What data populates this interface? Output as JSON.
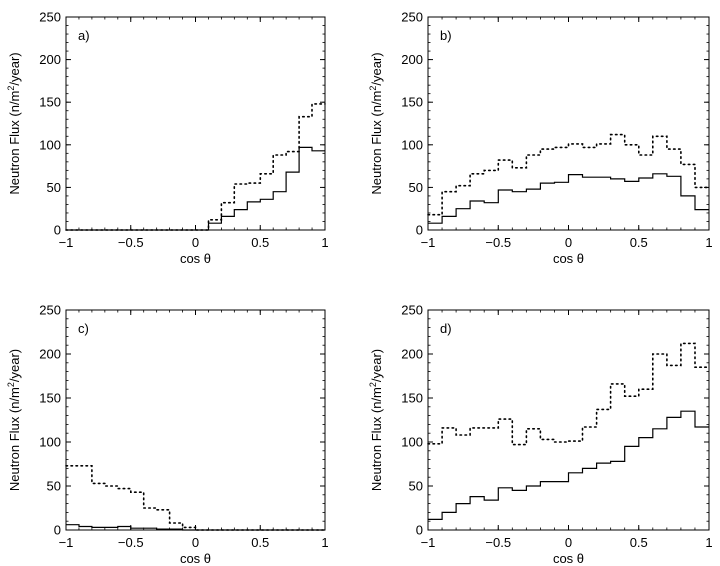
{
  "chart_data": [
    {
      "type": "step",
      "panel_label": "a)",
      "xlabel": "cos θ",
      "ylabel_parts": [
        "Neutron Flux (n/m",
        "2",
        "/year)"
      ],
      "xlim": [
        -1,
        1
      ],
      "ylim": [
        0,
        250
      ],
      "xticks": [
        -1,
        -0.5,
        0,
        0.5,
        1
      ],
      "yticks": [
        0,
        50,
        100,
        150,
        200,
        250
      ],
      "xtick_labels": [
        "−1",
        "−0.5",
        "0",
        "0.5",
        "1"
      ],
      "ytick_labels": [
        "0",
        "50",
        "100",
        "150",
        "200",
        "250"
      ],
      "bin_edges": [
        -1,
        -0.9,
        -0.8,
        -0.7,
        -0.6,
        -0.5,
        -0.4,
        -0.3,
        -0.2,
        -0.1,
        0,
        0.1,
        0.2,
        0.3,
        0.4,
        0.5,
        0.6,
        0.7,
        0.8,
        0.9,
        1
      ],
      "series": [
        {
          "name": "solid",
          "style": "solid",
          "values": [
            0,
            0,
            0,
            0,
            0,
            0,
            0,
            0,
            0,
            0,
            0,
            8,
            16,
            24,
            33,
            36,
            45,
            68,
            97,
            93
          ]
        },
        {
          "name": "dotted",
          "style": "dotted",
          "values": [
            0,
            0,
            0,
            0,
            0,
            0,
            0,
            0,
            0,
            0,
            0,
            12,
            32,
            54,
            55,
            66,
            88,
            92,
            133,
            148
          ]
        }
      ]
    },
    {
      "type": "step",
      "panel_label": "b)",
      "xlabel": "cos θ",
      "ylabel_parts": [
        "Neutron Flux (n/m",
        "2",
        "/year)"
      ],
      "xlim": [
        -1,
        1
      ],
      "ylim": [
        0,
        250
      ],
      "xticks": [
        -1,
        -0.5,
        0,
        0.5,
        1
      ],
      "yticks": [
        0,
        50,
        100,
        150,
        200,
        250
      ],
      "xtick_labels": [
        "−1",
        "−0.5",
        "0",
        "0.5",
        "1"
      ],
      "ytick_labels": [
        "0",
        "50",
        "100",
        "150",
        "200",
        "250"
      ],
      "bin_edges": [
        -1,
        -0.9,
        -0.8,
        -0.7,
        -0.6,
        -0.5,
        -0.4,
        -0.3,
        -0.2,
        -0.1,
        0,
        0.1,
        0.2,
        0.3,
        0.4,
        0.5,
        0.6,
        0.7,
        0.8,
        0.9,
        1
      ],
      "series": [
        {
          "name": "solid",
          "style": "solid",
          "values": [
            8,
            16,
            25,
            34,
            32,
            47,
            45,
            48,
            55,
            56,
            65,
            62,
            62,
            60,
            57,
            61,
            66,
            63,
            40,
            24
          ]
        },
        {
          "name": "dotted",
          "style": "dotted",
          "values": [
            18,
            45,
            52,
            66,
            70,
            82,
            73,
            88,
            95,
            97,
            101,
            97,
            101,
            112,
            100,
            88,
            110,
            95,
            77,
            50
          ]
        }
      ]
    },
    {
      "type": "step",
      "panel_label": "c)",
      "xlabel": "cos θ",
      "ylabel_parts": [
        "Neutron Flux (n/m",
        "2",
        "/year)"
      ],
      "xlim": [
        -1,
        1
      ],
      "ylim": [
        0,
        250
      ],
      "xticks": [
        -1,
        -0.5,
        0,
        0.5,
        1
      ],
      "yticks": [
        0,
        50,
        100,
        150,
        200,
        250
      ],
      "xtick_labels": [
        "−1",
        "−0.5",
        "0",
        "0.5",
        "1"
      ],
      "ytick_labels": [
        "0",
        "50",
        "100",
        "150",
        "200",
        "250"
      ],
      "bin_edges": [
        -1,
        -0.9,
        -0.8,
        -0.7,
        -0.6,
        -0.5,
        -0.4,
        -0.3,
        -0.2,
        -0.1,
        0,
        0.1,
        0.2,
        0.3,
        0.4,
        0.5,
        0.6,
        0.7,
        0.8,
        0.9,
        1
      ],
      "series": [
        {
          "name": "solid",
          "style": "solid",
          "values": [
            6,
            4,
            3,
            3,
            4,
            2,
            2,
            1,
            1,
            0,
            0,
            0,
            0,
            0,
            0,
            0,
            0,
            0,
            0,
            0
          ]
        },
        {
          "name": "dotted",
          "style": "dotted",
          "values": [
            73,
            73,
            53,
            50,
            47,
            43,
            25,
            23,
            8,
            3,
            0,
            0,
            0,
            0,
            0,
            0,
            0,
            0,
            0,
            0
          ]
        }
      ]
    },
    {
      "type": "step",
      "panel_label": "d)",
      "xlabel": "cos θ",
      "ylabel_parts": [
        "Neutron Flux (n/m",
        "2",
        "/year)"
      ],
      "xlim": [
        -1,
        1
      ],
      "ylim": [
        0,
        250
      ],
      "xticks": [
        -1,
        -0.5,
        0,
        0.5,
        1
      ],
      "yticks": [
        0,
        50,
        100,
        150,
        200,
        250
      ],
      "xtick_labels": [
        "−1",
        "−0.5",
        "0",
        "0.5",
        "1"
      ],
      "ytick_labels": [
        "0",
        "50",
        "100",
        "150",
        "200",
        "250"
      ],
      "bin_edges": [
        -1,
        -0.9,
        -0.8,
        -0.7,
        -0.6,
        -0.5,
        -0.4,
        -0.3,
        -0.2,
        -0.1,
        0,
        0.1,
        0.2,
        0.3,
        0.4,
        0.5,
        0.6,
        0.7,
        0.8,
        0.9,
        1
      ],
      "series": [
        {
          "name": "solid",
          "style": "solid",
          "values": [
            12,
            20,
            30,
            38,
            34,
            48,
            45,
            50,
            55,
            55,
            65,
            70,
            76,
            78,
            95,
            105,
            115,
            128,
            135,
            117
          ]
        },
        {
          "name": "dotted",
          "style": "dotted",
          "values": [
            98,
            116,
            108,
            116,
            116,
            126,
            97,
            115,
            103,
            100,
            101,
            117,
            137,
            166,
            152,
            160,
            200,
            187,
            212,
            185
          ]
        }
      ]
    }
  ]
}
